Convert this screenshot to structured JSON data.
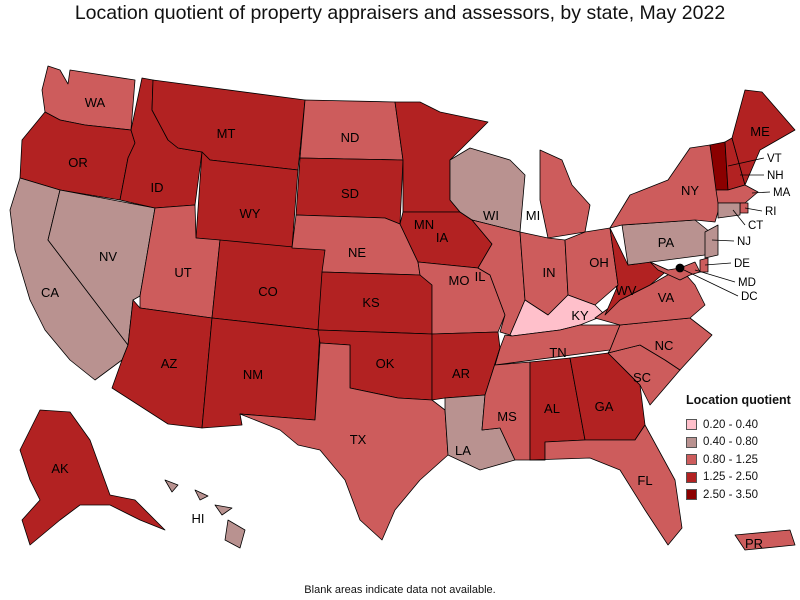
{
  "title": "Location quotient of property appraisers and assessors, by state, May 2022",
  "footnote": "Blank areas indicate data not available.",
  "legend": {
    "title": "Location quotient",
    "bins": [
      {
        "label": "0.20 - 0.40",
        "color": "#ffc0cb"
      },
      {
        "label": "0.40 - 0.80",
        "color": "#b99290"
      },
      {
        "label": "0.80 - 1.25",
        "color": "#cd5c5c"
      },
      {
        "label": "1.25 - 2.50",
        "color": "#b22222"
      },
      {
        "label": "2.50 - 3.50",
        "color": "#8b0000"
      }
    ]
  },
  "chart_data": {
    "type": "choropleth",
    "title": "Location quotient of property appraisers and assessors, by state, May 2022",
    "states": [
      {
        "abbr": "WA",
        "bin": 2
      },
      {
        "abbr": "OR",
        "bin": 3
      },
      {
        "abbr": "CA",
        "bin": 1
      },
      {
        "abbr": "NV",
        "bin": 1
      },
      {
        "abbr": "ID",
        "bin": 3
      },
      {
        "abbr": "MT",
        "bin": 3
      },
      {
        "abbr": "WY",
        "bin": 3
      },
      {
        "abbr": "UT",
        "bin": 2
      },
      {
        "abbr": "AZ",
        "bin": 3
      },
      {
        "abbr": "CO",
        "bin": 3
      },
      {
        "abbr": "NM",
        "bin": 3
      },
      {
        "abbr": "ND",
        "bin": 2
      },
      {
        "abbr": "SD",
        "bin": 3
      },
      {
        "abbr": "NE",
        "bin": 2
      },
      {
        "abbr": "KS",
        "bin": 3
      },
      {
        "abbr": "OK",
        "bin": 3
      },
      {
        "abbr": "TX",
        "bin": 2
      },
      {
        "abbr": "MN",
        "bin": 3
      },
      {
        "abbr": "IA",
        "bin": 3
      },
      {
        "abbr": "MO",
        "bin": 2
      },
      {
        "abbr": "AR",
        "bin": 3
      },
      {
        "abbr": "LA",
        "bin": 1
      },
      {
        "abbr": "WI",
        "bin": 1
      },
      {
        "abbr": "IL",
        "bin": 2
      },
      {
        "abbr": "MI",
        "bin": 2
      },
      {
        "abbr": "IN",
        "bin": 2
      },
      {
        "abbr": "OH",
        "bin": 2
      },
      {
        "abbr": "KY",
        "bin": 0
      },
      {
        "abbr": "TN",
        "bin": 2
      },
      {
        "abbr": "MS",
        "bin": 2
      },
      {
        "abbr": "AL",
        "bin": 3
      },
      {
        "abbr": "GA",
        "bin": 3
      },
      {
        "abbr": "FL",
        "bin": 2
      },
      {
        "abbr": "SC",
        "bin": 2
      },
      {
        "abbr": "NC",
        "bin": 2
      },
      {
        "abbr": "VA",
        "bin": 2
      },
      {
        "abbr": "WV",
        "bin": 3
      },
      {
        "abbr": "PA",
        "bin": 1
      },
      {
        "abbr": "NY",
        "bin": 2
      },
      {
        "abbr": "VT",
        "bin": 4
      },
      {
        "abbr": "NH",
        "bin": 3
      },
      {
        "abbr": "ME",
        "bin": 3
      },
      {
        "abbr": "MA",
        "bin": 2
      },
      {
        "abbr": "RI",
        "bin": 2
      },
      {
        "abbr": "CT",
        "bin": 1
      },
      {
        "abbr": "NJ",
        "bin": 1
      },
      {
        "abbr": "DE",
        "bin": 2
      },
      {
        "abbr": "MD",
        "bin": 2
      },
      {
        "abbr": "DC",
        "bin": 4
      },
      {
        "abbr": "AK",
        "bin": 3
      },
      {
        "abbr": "HI",
        "bin": 1
      },
      {
        "abbr": "PR",
        "bin": 2
      }
    ]
  }
}
